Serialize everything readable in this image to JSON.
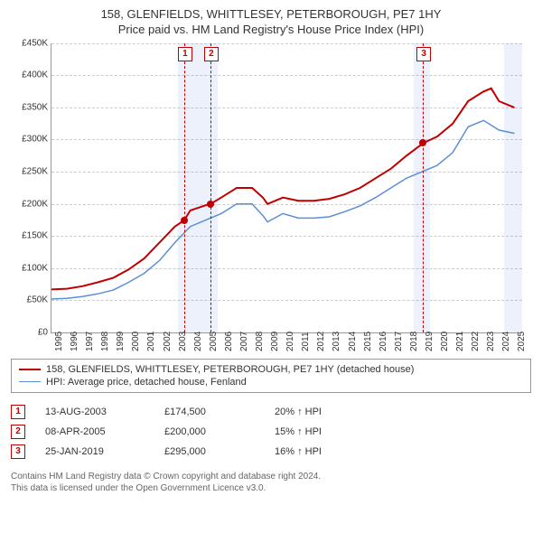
{
  "title_line1": "158, GLENFIELDS, WHITTLESEY, PETERBOROUGH, PE7 1HY",
  "title_line2": "Price paid vs. HM Land Registry's House Price Index (HPI)",
  "chart": {
    "type": "line",
    "background_color": "#ffffff",
    "grid_color": "#cccccc",
    "axis_color": "#999999",
    "xmin": 1995,
    "xmax": 2025.5,
    "ymin": 0,
    "ymax": 450000,
    "yticks": [
      0,
      50000,
      100000,
      150000,
      200000,
      250000,
      300000,
      350000,
      400000,
      450000
    ],
    "yticklabels": [
      "£0",
      "£50K",
      "£100K",
      "£150K",
      "£200K",
      "£250K",
      "£300K",
      "£350K",
      "£400K",
      "£450K"
    ],
    "xticks": [
      1995,
      1996,
      1997,
      1998,
      1999,
      2000,
      2001,
      2002,
      2003,
      2004,
      2005,
      2006,
      2007,
      2008,
      2009,
      2010,
      2011,
      2012,
      2013,
      2014,
      2015,
      2016,
      2017,
      2018,
      2019,
      2020,
      2021,
      2022,
      2023,
      2024,
      2025
    ],
    "shaded_bands": [
      {
        "from": 2003.2,
        "to": 2005.8,
        "color": "rgba(100,140,220,0.12)"
      },
      {
        "from": 2018.5,
        "to": 2019.5,
        "color": "rgba(100,140,220,0.12)"
      },
      {
        "from": 2024.3,
        "to": 2025.5,
        "color": "rgba(100,140,220,0.12)"
      }
    ],
    "series": [
      {
        "name": "price_paid",
        "color": "#c00000",
        "width": 2,
        "x": [
          1995,
          1996,
          1997,
          1998,
          1999,
          2000,
          2001,
          2002,
          2003,
          2003.6,
          2004,
          2005,
          2005.3,
          2006,
          2007,
          2008,
          2008.7,
          2009,
          2010,
          2011,
          2012,
          2013,
          2014,
          2015,
          2016,
          2017,
          2018,
          2019,
          2019.1,
          2020,
          2021,
          2022,
          2023,
          2023.5,
          2024,
          2025
        ],
        "y": [
          67000,
          68000,
          72000,
          78000,
          85000,
          98000,
          115000,
          140000,
          165000,
          174500,
          190000,
          198000,
          200000,
          210000,
          225000,
          225000,
          210000,
          200000,
          210000,
          205000,
          205000,
          208000,
          215000,
          225000,
          240000,
          255000,
          275000,
          293000,
          295000,
          305000,
          325000,
          360000,
          375000,
          380000,
          360000,
          350000
        ]
      },
      {
        "name": "hpi",
        "color": "#5b8fd6",
        "width": 1.5,
        "x": [
          1995,
          1996,
          1997,
          1998,
          1999,
          2000,
          2001,
          2002,
          2003,
          2004,
          2005,
          2006,
          2007,
          2008,
          2008.7,
          2009,
          2010,
          2011,
          2012,
          2013,
          2014,
          2015,
          2016,
          2017,
          2018,
          2019,
          2020,
          2021,
          2022,
          2023,
          2024,
          2025
        ],
        "y": [
          52000,
          53000,
          56000,
          60000,
          66000,
          78000,
          92000,
          112000,
          140000,
          165000,
          175000,
          185000,
          200000,
          200000,
          182000,
          172000,
          185000,
          178000,
          178000,
          180000,
          188000,
          197000,
          210000,
          225000,
          240000,
          250000,
          260000,
          280000,
          320000,
          330000,
          315000,
          310000
        ]
      }
    ],
    "markers": [
      {
        "num": "1",
        "x": 2003.6,
        "y": 174500
      },
      {
        "num": "2",
        "x": 2005.3,
        "y": 200000
      },
      {
        "num": "3",
        "x": 2019.07,
        "y": 295000
      }
    ]
  },
  "legend": {
    "series1_color": "#c00000",
    "series1_label": "158, GLENFIELDS, WHITTLESEY, PETERBOROUGH, PE7 1HY (detached house)",
    "series2_color": "#5b8fd6",
    "series2_label": "HPI: Average price, detached house, Fenland"
  },
  "sales": [
    {
      "num": "1",
      "date": "13-AUG-2003",
      "price": "£174,500",
      "delta": "20% ↑ HPI"
    },
    {
      "num": "2",
      "date": "08-APR-2005",
      "price": "£200,000",
      "delta": "15% ↑ HPI"
    },
    {
      "num": "3",
      "date": "25-JAN-2019",
      "price": "£295,000",
      "delta": "16% ↑ HPI"
    }
  ],
  "copyright_line1": "Contains HM Land Registry data © Crown copyright and database right 2024.",
  "copyright_line2": "This data is licensed under the Open Government Licence v3.0."
}
